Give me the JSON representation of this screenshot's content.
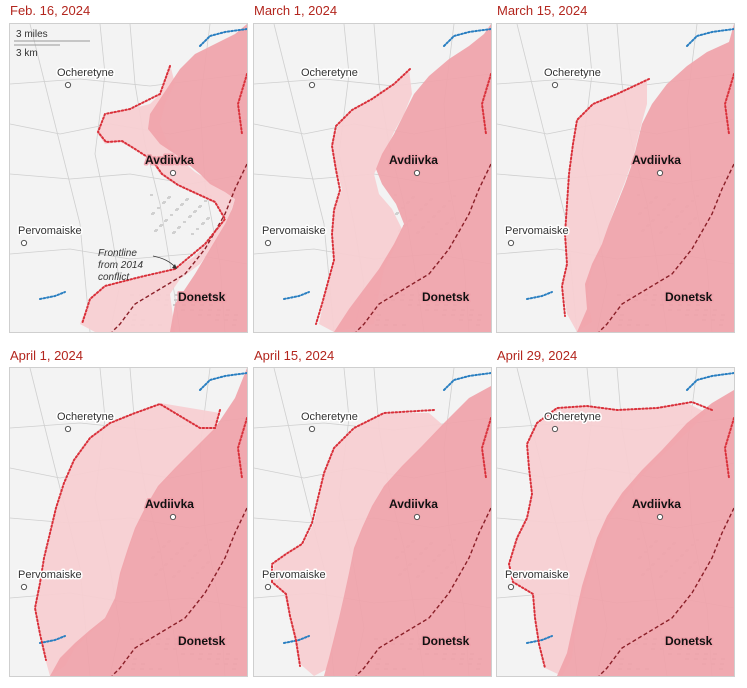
{
  "panels": [
    {
      "date": "Feb. 16, 2024",
      "stage": 0
    },
    {
      "date": "March 1, 2024",
      "stage": 1
    },
    {
      "date": "March 15, 2024",
      "stage": 2
    },
    {
      "date": "April 1, 2024",
      "stage": 3
    },
    {
      "date": "April 15, 2024",
      "stage": 4
    },
    {
      "date": "April 29, 2024",
      "stage": 5
    }
  ],
  "places": {
    "ocheretyne": "Ocheretyne",
    "avdiivka": "Avdiivka",
    "pervomaiske": "Pervomaiske",
    "donetsk": "Donetsk"
  },
  "scale": {
    "miles": "3 miles",
    "km": "3 km"
  },
  "annotation": {
    "line1": "Frontline",
    "line2": "from 2014",
    "line3": "conflict"
  },
  "colors": {
    "occupied": "#f0a3aa",
    "advance": "#f7cfd2",
    "frontline_dots": "#d9303a",
    "border_dots": "#2a7fc1",
    "line_2014": "#8a1f28",
    "title": "#b3261e"
  }
}
